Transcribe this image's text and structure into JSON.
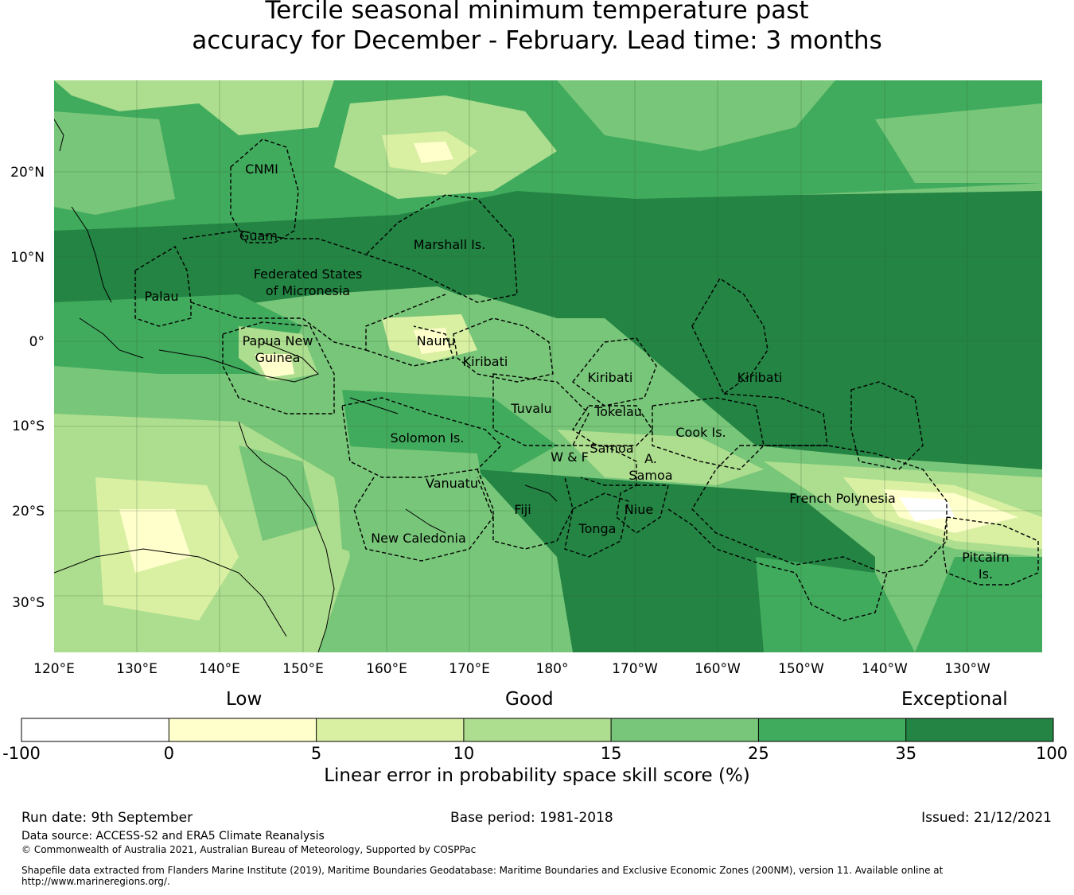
{
  "title_line1": "Tercile seasonal minimum temperature past",
  "title_line2": "accuracy for December - February. Lead time: 3 months",
  "map": {
    "lat_labels": [
      "20°N",
      "10°N",
      "0°",
      "10°S",
      "20°S",
      "30°S"
    ],
    "lon_labels": [
      "120°E",
      "130°E",
      "140°E",
      "150°E",
      "160°E",
      "170°E",
      "180°",
      "170°W",
      "160°W",
      "150°W",
      "140°W",
      "130°W"
    ],
    "regions": [
      {
        "label": "CNMI"
      },
      {
        "label": "Guam"
      },
      {
        "label": "Marshall Is."
      },
      {
        "label": "Federated States"
      },
      {
        "label": "of Micronesia"
      },
      {
        "label": "Palau"
      },
      {
        "label": "Papua New"
      },
      {
        "label": "Guinea"
      },
      {
        "label": "Nauru"
      },
      {
        "label": "Kiribati"
      },
      {
        "label": "Kiribati"
      },
      {
        "label": "Kiribati"
      },
      {
        "label": "Tuvalu"
      },
      {
        "label": "Tokelau"
      },
      {
        "label": "Cook Is."
      },
      {
        "label": "Solomon Is."
      },
      {
        "label": "Samoa"
      },
      {
        "label": "W & F"
      },
      {
        "label": "A."
      },
      {
        "label": "Samoa"
      },
      {
        "label": "Vanuatu"
      },
      {
        "label": "French Polynesia"
      },
      {
        "label": "Fiji"
      },
      {
        "label": "Niue"
      },
      {
        "label": "Tonga"
      },
      {
        "label": "New Caledonia"
      },
      {
        "label": "Pitcairn"
      },
      {
        "label": "Is."
      }
    ]
  },
  "legend": {
    "categories": [
      "Low",
      "Good",
      "Exceptional"
    ],
    "ticks": [
      "-100",
      "0",
      "5",
      "10",
      "15",
      "25",
      "35",
      "100"
    ],
    "colors": [
      "#ffffff",
      "#ffffcc",
      "#d9f0a3",
      "#addd8e",
      "#78c679",
      "#41ab5d",
      "#238443"
    ],
    "label": "Linear error in probability space skill score (%)"
  },
  "footer": {
    "run_date": "Run date: 9th September",
    "base_period": "Base period: 1981-2018",
    "issued": "Issued: 21/12/2021",
    "data_source": "Data source: ACCESS-S2 and ERA5 Climate Reanalysis",
    "copyright": "© Commonwealth of Australia 2021, Australian Bureau of Meteorology, Supported by COSPPac",
    "shapefile_line1": "Shapefile data extracted from Flanders Marine Institute (2019), Maritime Boundaries Geodatabase: Maritime Boundaries and Exclusive Economic Zones (200NM), version 11. Available online at",
    "shapefile_line2": "http://www.marineregions.org/."
  }
}
